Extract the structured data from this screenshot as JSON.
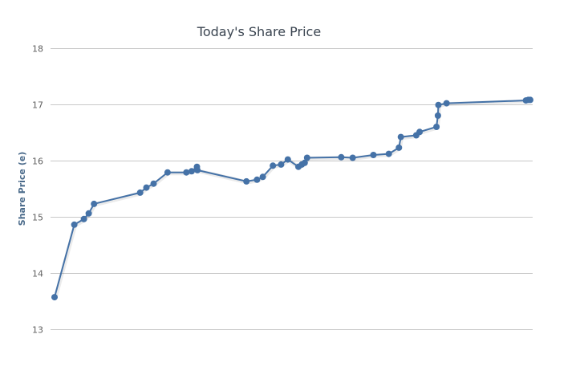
{
  "chart_data": {
    "type": "line",
    "title": "Today's Share Price",
    "xlabel": "",
    "ylabel": "Share Price (e)",
    "ylim": [
      13,
      18
    ],
    "yticks": [
      13,
      14,
      15,
      16,
      17,
      18
    ],
    "grid": true,
    "legend": false,
    "x_axis_labels": false,
    "series": [
      {
        "color": "#4572a7",
        "points": [
          [
            0.0,
            13.57
          ],
          [
            4.1,
            14.86
          ],
          [
            6.1,
            14.96
          ],
          [
            7.1,
            15.06
          ],
          [
            8.2,
            15.23
          ],
          [
            17.8,
            15.43
          ],
          [
            19.1,
            15.52
          ],
          [
            20.6,
            15.59
          ],
          [
            23.5,
            15.79
          ],
          [
            27.4,
            15.79
          ],
          [
            28.5,
            15.81
          ],
          [
            29.6,
            15.89
          ],
          [
            29.7,
            15.83
          ],
          [
            39.9,
            15.63
          ],
          [
            42.1,
            15.66
          ],
          [
            43.3,
            15.71
          ],
          [
            45.4,
            15.91
          ],
          [
            47.1,
            15.93
          ],
          [
            48.5,
            16.02
          ],
          [
            50.7,
            15.89
          ],
          [
            51.4,
            15.93
          ],
          [
            52.0,
            15.96
          ],
          [
            52.5,
            16.05
          ],
          [
            59.6,
            16.06
          ],
          [
            62.0,
            16.05
          ],
          [
            66.3,
            16.1
          ],
          [
            69.5,
            16.12
          ],
          [
            71.6,
            16.23
          ],
          [
            72.0,
            16.42
          ],
          [
            75.2,
            16.45
          ],
          [
            75.9,
            16.51
          ],
          [
            79.4,
            16.6
          ],
          [
            79.7,
            16.8
          ],
          [
            79.8,
            16.99
          ],
          [
            81.5,
            17.02
          ],
          [
            98.0,
            17.07
          ],
          [
            98.5,
            17.08
          ],
          [
            98.9,
            17.08
          ]
        ]
      }
    ]
  }
}
